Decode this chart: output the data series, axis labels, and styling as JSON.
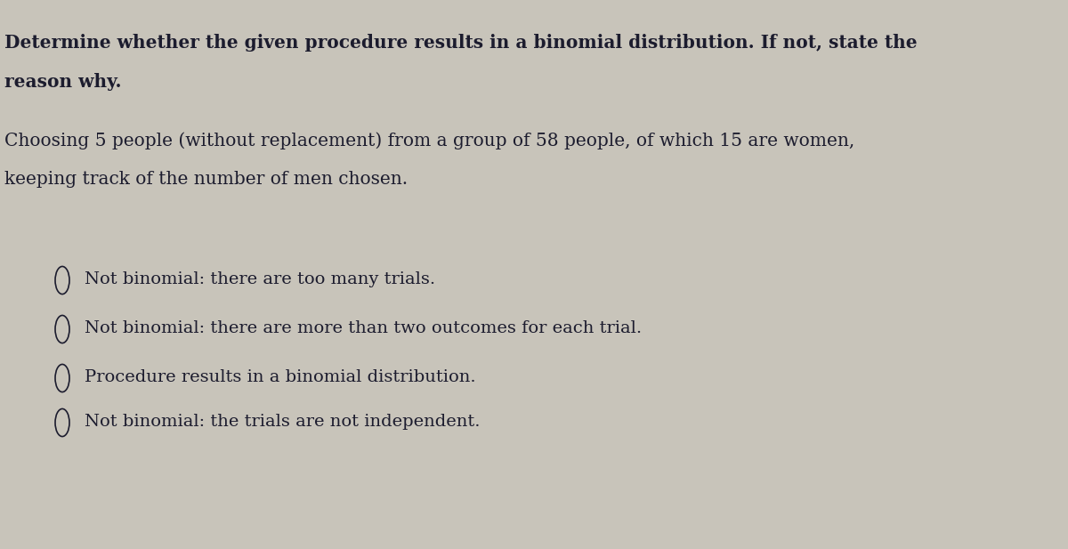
{
  "background_color": "#c8c4ba",
  "text_color": "#1c1c2e",
  "title_line1": "Determine whether the given procedure results in a binomial distribution. If not, state the",
  "title_line2": "reason why.",
  "scenario_line1": "Choosing 5 people (without replacement) from a group of 58 people, of which 15 are women,",
  "scenario_line2": "keeping track of the number of men chosen.",
  "options": [
    "Not binomial: there are too many trials.",
    "Not binomial: there are more than two outcomes for each trial.",
    "Procedure results in a binomial distribution.",
    "Not binomial: the trials are not independent."
  ],
  "title_fontsize": 14.5,
  "scenario_fontsize": 14.5,
  "option_fontsize": 14,
  "fig_width": 12.0,
  "fig_height": 6.17,
  "fig_dpi": 100
}
